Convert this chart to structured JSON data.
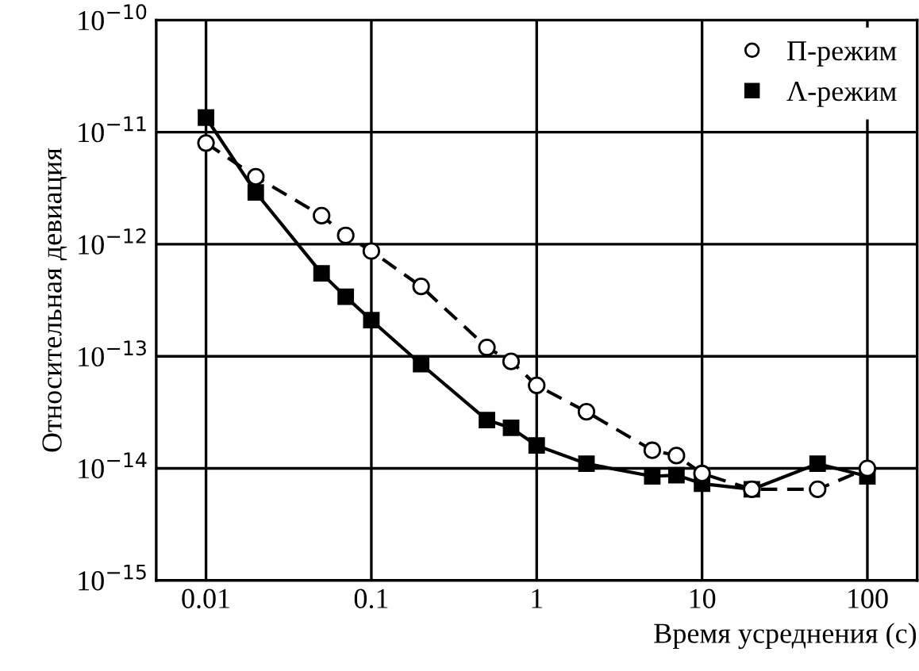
{
  "chart_data": {
    "type": "line",
    "xlabel": "Время усреднения (с)",
    "ylabel": "Относительная девиация",
    "log": "xy",
    "xlim": [
      0.005,
      200
    ],
    "ylim": [
      1e-15,
      1e-10
    ],
    "xticks": [
      0.01,
      0.1,
      1,
      10,
      100
    ],
    "yticks": [
      {
        "value": 1e-15,
        "label": "10$^{−15}$"
      },
      {
        "value": 1e-14,
        "label": "10$^{−14}$"
      },
      {
        "value": 1e-13,
        "label": "10$^{−13}$"
      },
      {
        "value": 1e-12,
        "label": "10$^{−12}$"
      },
      {
        "value": 1e-11,
        "label": "10$^{−11}$"
      },
      {
        "value": 1e-10,
        "label": "10$^{−10}$"
      }
    ],
    "grid": true,
    "legend": "top right",
    "x": [
      0.01,
      0.02,
      0.05,
      0.07,
      0.1,
      0.2,
      0.5,
      0.7,
      1,
      2,
      5,
      7,
      10,
      20,
      50,
      100
    ],
    "series": [
      {
        "name": "П-режим",
        "color": "#000000",
        "marker": "circle",
        "line_style": "dashed",
        "values": [
          8e-12,
          4e-12,
          1.8e-12,
          1.2e-12,
          8.7e-13,
          4.2e-13,
          1.2e-13,
          9e-14,
          5.5e-14,
          3.2e-14,
          1.45e-14,
          1.3e-14,
          9e-15,
          6.5e-15,
          6.5e-15,
          1e-14
        ]
      },
      {
        "name": "Λ-режим",
        "color": "#000000",
        "marker": "square",
        "line_style": "solid",
        "values": [
          1.35e-11,
          2.9e-12,
          5.5e-13,
          3.4e-13,
          2.1e-13,
          8.5e-14,
          2.7e-14,
          2.3e-14,
          1.6e-14,
          1.1e-14,
          8.5e-15,
          8.7e-15,
          7.3e-15,
          6.5e-15,
          1.1e-14,
          8.5e-15
        ]
      }
    ]
  }
}
